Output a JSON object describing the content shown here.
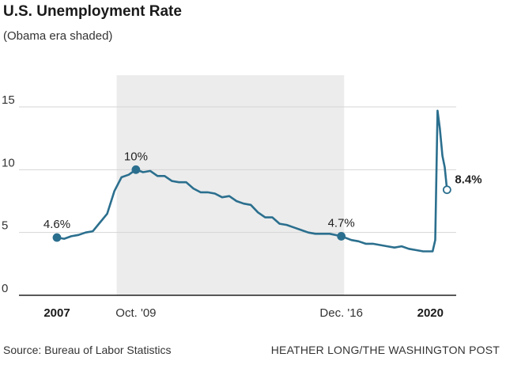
{
  "header": {
    "title": "U.S. Unemployment Rate",
    "subtitle": "(Obama era shaded)"
  },
  "footer": {
    "source": "Source: Bureau of Labor Statistics",
    "credit": "HEATHER LONG/THE WASHINGTON POST"
  },
  "colors": {
    "line": "#2b6f8e",
    "shade": "#ececec",
    "grid": "#d6d6d6",
    "axis": "#222222"
  },
  "chart_data": {
    "type": "line",
    "title": "U.S. Unemployment Rate",
    "subtitle": "(Obama era shaded)",
    "ylim": [
      0,
      15
    ],
    "yticks": [
      0,
      5,
      10,
      15
    ],
    "xlim": [
      2007.0,
      2020.9
    ],
    "x_tick_labels": [
      {
        "x": 2007.0,
        "label": "2007",
        "bold": true
      },
      {
        "x": 2009.75,
        "label": "Oct. '09",
        "bold": false
      },
      {
        "x": 2016.9,
        "label": "Dec. '16",
        "bold": false
      },
      {
        "x": 2020.0,
        "label": "2020",
        "bold": true
      }
    ],
    "shaded_region": {
      "label": "Obama era",
      "x_start": 2009.08,
      "x_end": 2017.0
    },
    "series": [
      {
        "x": [
          2007.0,
          2007.25,
          2007.5,
          2007.75,
          2008.0,
          2008.25,
          2008.5,
          2008.75,
          2009.0,
          2009.25,
          2009.5,
          2009.75,
          2010.0,
          2010.25,
          2010.5,
          2010.75,
          2011.0,
          2011.25,
          2011.5,
          2011.75,
          2012.0,
          2012.25,
          2012.5,
          2012.75,
          2013.0,
          2013.25,
          2013.5,
          2013.75,
          2014.0,
          2014.25,
          2014.5,
          2014.75,
          2015.0,
          2015.25,
          2015.5,
          2015.75,
          2016.0,
          2016.25,
          2016.5,
          2016.9,
          2017.25,
          2017.5,
          2017.75,
          2018.0,
          2018.25,
          2018.5,
          2018.75,
          2019.0,
          2019.25,
          2019.5,
          2019.75,
          2020.08,
          2020.17,
          2020.25,
          2020.33,
          2020.42,
          2020.5,
          2020.58
        ],
        "values": [
          4.6,
          4.5,
          4.7,
          4.8,
          5.0,
          5.1,
          5.8,
          6.5,
          8.3,
          9.4,
          9.6,
          10.0,
          9.8,
          9.9,
          9.5,
          9.5,
          9.1,
          9.0,
          9.0,
          8.5,
          8.2,
          8.2,
          8.1,
          7.8,
          7.9,
          7.5,
          7.3,
          7.2,
          6.6,
          6.2,
          6.2,
          5.7,
          5.6,
          5.4,
          5.2,
          5.0,
          4.9,
          4.9,
          4.9,
          4.7,
          4.4,
          4.3,
          4.1,
          4.1,
          4.0,
          3.9,
          3.8,
          3.9,
          3.7,
          3.6,
          3.5,
          3.5,
          4.4,
          14.7,
          13.3,
          11.1,
          10.2,
          8.4
        ]
      }
    ],
    "annotations": [
      {
        "x": 2007.0,
        "y": 4.6,
        "label": "4.6%",
        "bold": false
      },
      {
        "x": 2009.75,
        "y": 10.0,
        "label": "10%",
        "bold": false
      },
      {
        "x": 2016.9,
        "y": 4.7,
        "label": "4.7%",
        "bold": false
      },
      {
        "x": 2020.58,
        "y": 8.4,
        "label": "8.4%",
        "bold": true,
        "open_marker": true
      }
    ]
  }
}
